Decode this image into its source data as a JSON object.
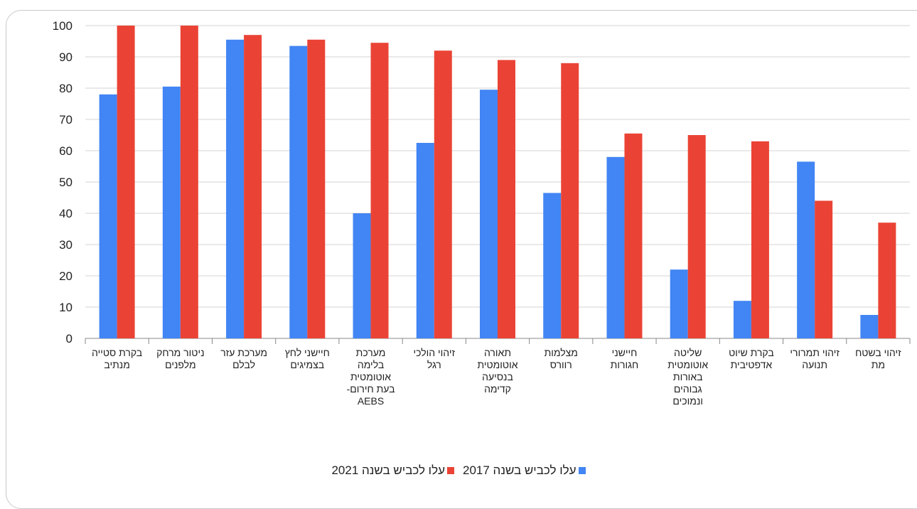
{
  "colors": {
    "series_2017": "#4285f4",
    "series_2021": "#ea4335",
    "grid": "#d3d3d3",
    "axis": "#888888",
    "text": "#222222"
  },
  "chart_data": {
    "type": "bar",
    "title": "",
    "xlabel": "",
    "ylabel": "",
    "ylim": [
      0,
      100
    ],
    "yticks": [
      0,
      10,
      20,
      30,
      40,
      50,
      60,
      70,
      80,
      90,
      100
    ],
    "grid": true,
    "legend_position": "bottom",
    "categories": [
      "בקרת סטייה מנתיב",
      "ניטור מרחק מלפנים",
      "מערכת עזר לבלם",
      "חיישני לחץ בצמיגים",
      "מערכת בלימה אוטומטית בעת חירום- AEBS",
      "זיהוי הולכי רגל",
      "תאורה אוטומטית בנסיעה קדימה",
      "מצלמות רוורס",
      "חיישני חגורות",
      "שליטה אוטומטית באורות גבוהים ונמוכים",
      "בקרת שיוט אדפטיבית",
      "זיהוי תמרורי תנועה",
      "זיהוי בשטח מת"
    ],
    "category_lines": [
      [
        "בקרת סטייה",
        "מנתיב"
      ],
      [
        "ניטור מרחק",
        "מלפנים"
      ],
      [
        "מערכת עזר",
        "לבלם"
      ],
      [
        "חיישני לחץ",
        "בצמיגים"
      ],
      [
        "מערכת",
        "בלימה",
        "אוטומטית",
        "בעת חירום-",
        "AEBS"
      ],
      [
        "זיהוי הולכי",
        "רגל"
      ],
      [
        "תאורה",
        "אוטומטית",
        "בנסיעה",
        "קדימה"
      ],
      [
        "מצלמות",
        "רוורס"
      ],
      [
        "חיישני",
        "חגורות"
      ],
      [
        "שליטה",
        "אוטומטית",
        "באורות",
        "גבוהים",
        "ונמוכים"
      ],
      [
        "בקרת שיוט",
        "אדפטיבית"
      ],
      [
        "זיהוי תמרורי",
        "תנועה"
      ],
      [
        "זיהוי בשטח",
        "מת"
      ]
    ],
    "series": [
      {
        "name": "עלו לכביש בשנה 2017",
        "color": "#4285f4",
        "values": [
          78,
          80.5,
          95.5,
          93.5,
          40,
          62.5,
          79.5,
          46.5,
          58,
          22,
          12,
          56.5,
          7.5
        ]
      },
      {
        "name": "עלו לכביש בשנה 2021",
        "color": "#ea4335",
        "values": [
          100,
          100,
          97,
          95.5,
          94.5,
          92,
          89,
          88,
          65.5,
          65,
          63,
          44,
          37
        ]
      }
    ]
  }
}
